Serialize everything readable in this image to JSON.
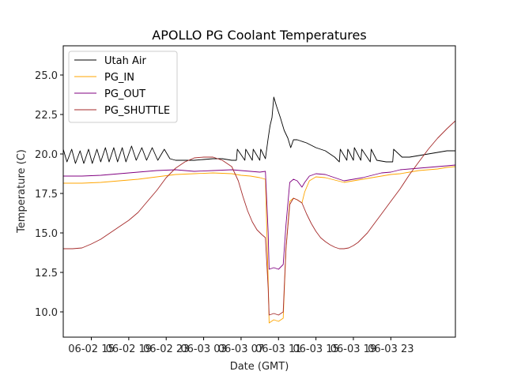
{
  "chart_data": {
    "type": "line",
    "title": "APOLLO PG Coolant Temperatures",
    "xlabel": "Date (GMT)",
    "ylabel": "Temperature (C)",
    "x_units": "hours since 06-02 00:00 GMT",
    "xlim": [
      12.0,
      53.9
    ],
    "ylim": [
      8.4,
      26.85
    ],
    "xticks": [
      {
        "value": 15,
        "label": "06-02 15"
      },
      {
        "value": 19,
        "label": "06-02 19"
      },
      {
        "value": 23,
        "label": "06-02 23"
      },
      {
        "value": 27,
        "label": "06-03 03"
      },
      {
        "value": 31,
        "label": "06-03 07"
      },
      {
        "value": 35,
        "label": "06-03 11"
      },
      {
        "value": 39,
        "label": "06-03 15"
      },
      {
        "value": 43,
        "label": "06-03 19"
      },
      {
        "value": 47,
        "label": "06-03 23"
      }
    ],
    "yticks": [
      {
        "value": 10.0,
        "label": "10.0"
      },
      {
        "value": 12.5,
        "label": "12.5"
      },
      {
        "value": 15.0,
        "label": "15.0"
      },
      {
        "value": 17.5,
        "label": "17.5"
      },
      {
        "value": 20.0,
        "label": "20.0"
      },
      {
        "value": 22.5,
        "label": "22.5"
      },
      {
        "value": 25.0,
        "label": "25.0"
      }
    ],
    "grid": false,
    "legend_position": "top-left",
    "series": [
      {
        "name": "Utah Air",
        "color": "#000000",
        "x": [
          12.0,
          12.4,
          12.9,
          13.3,
          13.8,
          14.2,
          14.7,
          15.1,
          15.6,
          16.0,
          16.5,
          16.9,
          17.4,
          17.8,
          18.3,
          18.7,
          19.3,
          19.8,
          20.4,
          20.9,
          21.5,
          22.1,
          22.8,
          23.4,
          24.0,
          25.0,
          26.0,
          27.0,
          28.0,
          29.0,
          30.0,
          30.5,
          30.6,
          31.4,
          31.5,
          32.2,
          32.3,
          33.0,
          33.1,
          33.6,
          33.9,
          34.1,
          34.3,
          34.5,
          34.8,
          35.2,
          35.6,
          36.0,
          36.3,
          36.6,
          37.0,
          38.0,
          39.0,
          40.0,
          41.0,
          41.5,
          41.6,
          42.3,
          42.4,
          43.0,
          43.1,
          43.8,
          43.9,
          44.8,
          44.9,
          45.5,
          46.5,
          47.2,
          47.3,
          48.2,
          49.0,
          50.0,
          51.0,
          52.0,
          53.0,
          53.9
        ],
        "y": [
          20.3,
          19.5,
          20.3,
          19.4,
          20.2,
          19.4,
          20.3,
          19.4,
          20.3,
          19.5,
          20.4,
          19.5,
          20.4,
          19.5,
          20.4,
          19.5,
          20.5,
          19.6,
          20.4,
          19.6,
          20.4,
          19.6,
          20.3,
          19.7,
          19.6,
          19.6,
          19.6,
          19.65,
          19.7,
          19.7,
          19.6,
          19.6,
          20.3,
          19.6,
          20.3,
          19.6,
          20.3,
          19.6,
          20.3,
          19.7,
          21.0,
          21.8,
          22.3,
          23.6,
          23.0,
          22.3,
          21.5,
          21.0,
          20.4,
          20.9,
          20.9,
          20.7,
          20.4,
          20.2,
          19.8,
          19.5,
          20.3,
          19.6,
          20.3,
          19.6,
          20.4,
          19.6,
          20.3,
          19.5,
          20.3,
          19.6,
          19.5,
          19.5,
          20.3,
          19.8,
          19.8,
          19.9,
          20.0,
          20.1,
          20.2,
          20.2
        ]
      },
      {
        "name": "PG_IN",
        "color": "#ffa500",
        "x": [
          12.0,
          14.0,
          16.0,
          18.0,
          20.0,
          22.0,
          24.0,
          26.0,
          28.0,
          30.0,
          31.0,
          32.0,
          33.0,
          33.6,
          33.9,
          34.0,
          34.5,
          35.0,
          35.5,
          35.8,
          36.2,
          36.6,
          37.0,
          37.5,
          37.8,
          38.3,
          39.0,
          40.0,
          41.0,
          42.0,
          43.0,
          44.0,
          45.0,
          46.0,
          47.0,
          48.0,
          49.0,
          50.0,
          51.0,
          52.0,
          53.0,
          53.9
        ],
        "y": [
          18.15,
          18.15,
          18.2,
          18.3,
          18.4,
          18.55,
          18.7,
          18.75,
          18.8,
          18.75,
          18.65,
          18.6,
          18.5,
          18.4,
          12.0,
          9.3,
          9.5,
          9.4,
          9.6,
          14.0,
          17.0,
          17.2,
          17.1,
          16.9,
          17.6,
          18.3,
          18.55,
          18.5,
          18.35,
          18.2,
          18.3,
          18.4,
          18.5,
          18.6,
          18.7,
          18.75,
          18.85,
          18.95,
          19.0,
          19.05,
          19.15,
          19.2
        ]
      },
      {
        "name": "PG_OUT",
        "color": "#800080",
        "x": [
          12.0,
          14.0,
          16.0,
          18.0,
          20.0,
          22.0,
          24.0,
          26.0,
          28.0,
          30.0,
          31.0,
          32.0,
          33.0,
          33.6,
          33.9,
          34.0,
          34.5,
          35.0,
          35.5,
          35.8,
          36.2,
          36.6,
          37.0,
          37.5,
          37.8,
          38.3,
          39.0,
          40.0,
          41.0,
          42.0,
          43.0,
          44.0,
          45.0,
          46.0,
          47.0,
          48.0,
          49.0,
          50.0,
          51.0,
          52.0,
          53.0,
          53.9
        ],
        "y": [
          18.6,
          18.6,
          18.65,
          18.75,
          18.85,
          18.95,
          19.0,
          18.9,
          18.95,
          19.0,
          18.95,
          18.9,
          18.85,
          18.9,
          15.0,
          12.7,
          12.8,
          12.7,
          13.0,
          15.5,
          18.2,
          18.4,
          18.3,
          17.9,
          18.2,
          18.6,
          18.75,
          18.7,
          18.5,
          18.3,
          18.4,
          18.5,
          18.65,
          18.8,
          18.85,
          19.0,
          19.05,
          19.1,
          19.15,
          19.2,
          19.25,
          19.3
        ]
      },
      {
        "name": "PG_SHUTTLE",
        "color": "#a52a2a",
        "x": [
          12.0,
          13.0,
          14.0,
          15.0,
          16.0,
          17.0,
          18.0,
          19.0,
          20.0,
          21.0,
          22.0,
          23.0,
          24.0,
          25.0,
          26.0,
          27.0,
          28.0,
          29.0,
          30.0,
          30.7,
          31.2,
          31.7,
          32.2,
          32.7,
          33.2,
          33.6,
          33.9,
          34.0,
          34.5,
          35.0,
          35.5,
          35.8,
          36.2,
          36.6,
          37.0,
          37.5,
          38.0,
          38.5,
          39.0,
          39.5,
          40.0,
          40.5,
          41.0,
          41.5,
          42.0,
          42.5,
          43.0,
          43.5,
          44.0,
          44.5,
          45.0,
          46.0,
          47.0,
          48.0,
          49.0,
          50.0,
          51.0,
          52.0,
          53.0,
          53.9
        ],
        "y": [
          14.0,
          14.0,
          14.05,
          14.3,
          14.6,
          15.0,
          15.4,
          15.8,
          16.3,
          17.0,
          17.7,
          18.5,
          19.1,
          19.5,
          19.75,
          19.8,
          19.8,
          19.6,
          19.2,
          18.3,
          17.3,
          16.4,
          15.7,
          15.2,
          14.9,
          14.7,
          11.5,
          9.8,
          9.9,
          9.8,
          10.0,
          14.0,
          16.8,
          17.2,
          17.1,
          16.9,
          16.2,
          15.6,
          15.1,
          14.7,
          14.45,
          14.25,
          14.1,
          14.0,
          14.0,
          14.05,
          14.2,
          14.4,
          14.7,
          15.0,
          15.4,
          16.2,
          17.0,
          17.8,
          18.7,
          19.5,
          20.3,
          21.0,
          21.6,
          22.1
        ]
      }
    ]
  }
}
